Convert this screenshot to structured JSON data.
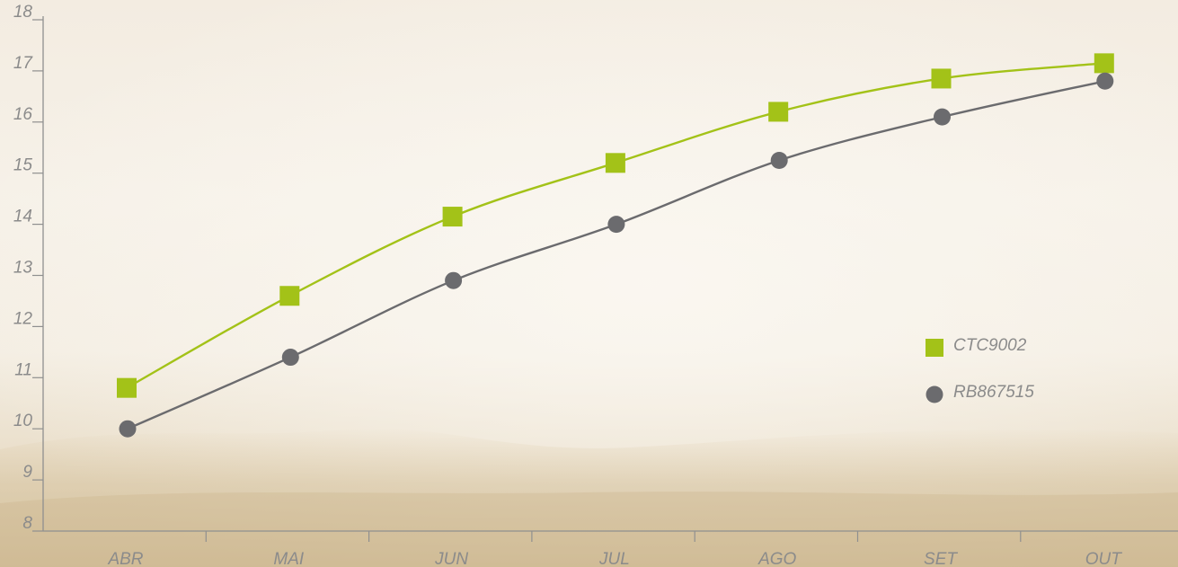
{
  "chart_data": {
    "type": "line",
    "categories": [
      "ABR",
      "MAI",
      "JUN",
      "JUL",
      "AGO",
      "SET",
      "OUT"
    ],
    "ylim": [
      8,
      18
    ],
    "yticks": [
      8,
      9,
      10,
      11,
      12,
      13,
      14,
      15,
      16,
      17,
      18
    ],
    "grid": false,
    "legend_position": "right",
    "series": [
      {
        "name": "CTC9002",
        "color": "#a3c218",
        "marker": "square",
        "values": [
          10.8,
          12.6,
          14.15,
          15.2,
          16.2,
          16.85,
          17.15
        ]
      },
      {
        "name": "RB867515",
        "color": "#6b6b6e",
        "marker": "circle",
        "values": [
          10.0,
          11.4,
          12.9,
          14.0,
          15.25,
          16.1,
          16.8
        ]
      }
    ],
    "axis_color": "#8f8f8f"
  }
}
